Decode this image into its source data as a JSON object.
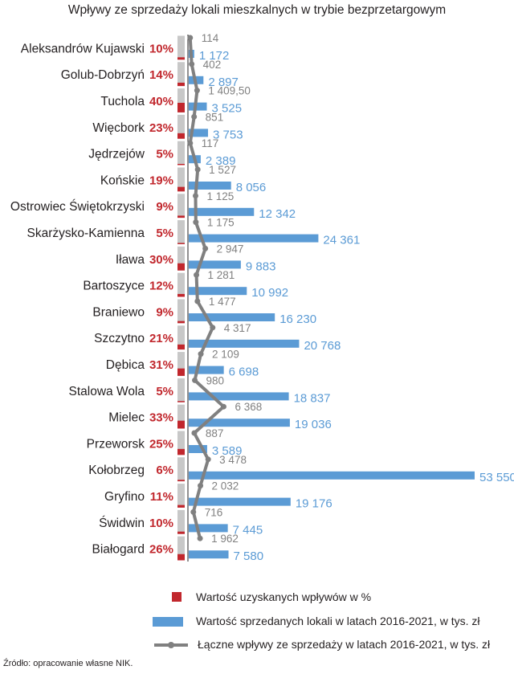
{
  "chart_data": {
    "type": "bar",
    "title": "Wpływy ze sprzedaży lokali mieszkalnych w trybie bezprzetargowym",
    "categories": [
      "Aleksandrów Kujawski",
      "Golub-Dobrzyń",
      "Tuchola",
      "Więcbork",
      "Jędrzejów",
      "Końskie",
      "Ostrowiec Świętokrzyski",
      "Skarżysko-Kamienna",
      "Iława",
      "Bartoszyce",
      "Braniewo",
      "Szczytno",
      "Dębica",
      "Stalowa Wola",
      "Mielec",
      "Przeworsk",
      "Kołobrzeg",
      "Gryfino",
      "Świdwin",
      "Białogard"
    ],
    "percent_labels": [
      "10%",
      "14%",
      "40%",
      "23%",
      "5%",
      "19%",
      "9%",
      "5%",
      "30%",
      "12%",
      "9%",
      "21%",
      "31%",
      "5%",
      "33%",
      "25%",
      "6%",
      "11%",
      "10%",
      "26%"
    ],
    "series": [
      {
        "name": "Wartość sprzedanych lokali w latach 2016-2021, w tys. zł",
        "type": "bar",
        "color": "#5b9bd5",
        "values": [
          1172,
          2897,
          3525,
          3753,
          2389,
          8056,
          12342,
          24361,
          9883,
          10992,
          16230,
          20768,
          6698,
          18837,
          19036,
          3589,
          53550,
          19176,
          7445,
          7580
        ],
        "labels": [
          "1 172",
          "2 897",
          "3 525",
          "3 753",
          "2 389",
          "8 056",
          "12 342",
          "24 361",
          "9 883",
          "10 992",
          "16 230",
          "20 768",
          "6 698",
          "18 837",
          "19 036",
          "3 589",
          "53 550",
          "19 176",
          "7 445",
          "7 580"
        ]
      },
      {
        "name": "Łączne wpływy ze sprzedaży w latach 2016-2021, w tys. zł",
        "type": "line",
        "color": "#808080",
        "values": [
          114,
          402,
          1409.5,
          851,
          117,
          1527,
          1125,
          1175,
          2947,
          1281,
          1477,
          4317,
          2109,
          980,
          6368,
          887,
          3478,
          2032,
          716,
          1962
        ],
        "labels": [
          "114",
          "402",
          "1 409,50",
          "851",
          "117",
          "1 527",
          "1 125",
          "1 175",
          "2 947",
          "1 281",
          "1 477",
          "4 317",
          "2 109",
          "980",
          "6 368",
          "887",
          "3 478",
          "2 032",
          "716",
          "1 962"
        ]
      },
      {
        "name": "Wartość uzyskanych wpływów w %",
        "type": "percent-bar",
        "color": "#c1272d",
        "values": [
          10,
          14,
          40,
          23,
          5,
          19,
          9,
          5,
          30,
          12,
          9,
          21,
          31,
          5,
          33,
          25,
          6,
          11,
          10,
          26
        ]
      }
    ],
    "xlim": [
      0,
      57000
    ],
    "legend_position": "bottom"
  },
  "source": "Źródło: opracowanie własne NIK.",
  "colors": {
    "blue_bar": "#5b9bd5",
    "blue_label": "#5b9bd5",
    "line": "#808080",
    "red": "#c1272d",
    "gray_track": "#c8c8c8"
  }
}
